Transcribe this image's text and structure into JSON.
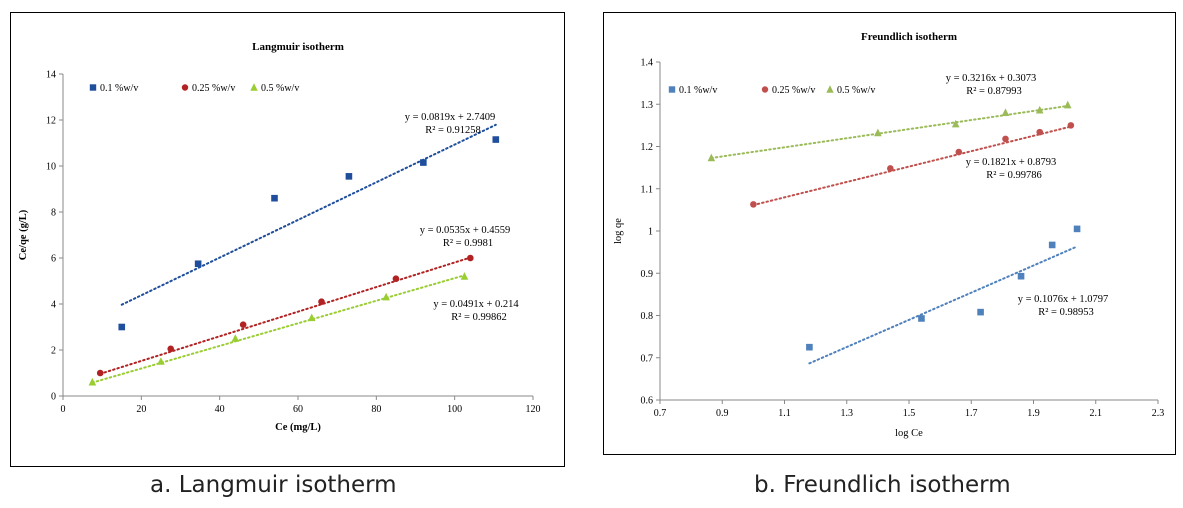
{
  "colors": {
    "blue": "#1f4e9c",
    "red": "#b22222",
    "green": "#9acd32",
    "blue_b": "#4f81bd",
    "red_b": "#c0504d",
    "green_b": "#9bbb59"
  },
  "captions": {
    "a": "a. Langmuir isotherm",
    "b": "b. Freundlich isotherm"
  },
  "chart_data": [
    {
      "type": "scatter",
      "title": "Langmuir isotherm",
      "xlabel": "Ce (mg/L)",
      "ylabel": "Ce/qe (g/L)",
      "xlim": [
        0,
        120
      ],
      "ylim": [
        0,
        14
      ],
      "xticks": [
        0,
        20,
        40,
        60,
        80,
        100,
        120
      ],
      "yticks": [
        0,
        2,
        4,
        6,
        8,
        10,
        12,
        14
      ],
      "grid": false,
      "legend_position": "top-left",
      "series": [
        {
          "name": "0.1 %w/v",
          "marker": "square",
          "color": "#1f4e9c",
          "x": [
            15,
            34.5,
            54,
            73,
            92,
            110.5
          ],
          "y": [
            3.0,
            5.75,
            8.6,
            9.55,
            10.15,
            11.15
          ],
          "trend": {
            "slope": 0.0819,
            "intercept": 2.7409,
            "x_range": [
              15,
              110.5
            ],
            "equation": "y = 0.0819x + 2.7409",
            "r2": "R² = 0.91258"
          }
        },
        {
          "name": "0.25 %w/v",
          "marker": "circle",
          "color": "#b22222",
          "x": [
            9.5,
            27.5,
            46,
            66,
            85,
            104
          ],
          "y": [
            1.0,
            2.05,
            3.1,
            4.1,
            5.1,
            6.0
          ],
          "trend": {
            "slope": 0.0535,
            "intercept": 0.4559,
            "x_range": [
              9.5,
              104
            ],
            "equation": "y = 0.0535x + 0.4559",
            "r2": "R² = 0.9981"
          }
        },
        {
          "name": "0.5 %w/v",
          "marker": "triangle",
          "color": "#9acd32",
          "x": [
            7.5,
            25,
            44,
            63.5,
            82.5,
            102.5
          ],
          "y": [
            0.6,
            1.5,
            2.5,
            3.4,
            4.3,
            5.2
          ],
          "trend": {
            "slope": 0.0491,
            "intercept": 0.214,
            "x_range": [
              7.5,
              102.5
            ],
            "equation": "y = 0.0491x + 0.214",
            "r2": "R² = 0.99862"
          }
        }
      ]
    },
    {
      "type": "scatter",
      "title": "Freundlich isotherm",
      "xlabel": "log Ce",
      "ylabel": "log qe",
      "xlim": [
        0.7,
        2.3
      ],
      "ylim": [
        0.6,
        1.4
      ],
      "xticks": [
        "0.7",
        "0.9",
        "1.1",
        "1.3",
        "1.5",
        "1.7",
        "1.9",
        "2.1",
        "2.3"
      ],
      "yticks": [
        "0.6",
        "0.7",
        "0.8",
        "0.9",
        "1",
        "1.1",
        "1.2",
        "1.3",
        "1.4"
      ],
      "grid": false,
      "legend_position": "top-left",
      "series": [
        {
          "name": "0.1 %w/v",
          "marker": "square",
          "color": "#4f81bd",
          "x": [
            1.18,
            1.54,
            1.73,
            1.86,
            1.96,
            2.04
          ],
          "y": [
            0.725,
            0.793,
            0.808,
            0.893,
            0.967,
            1.005
          ],
          "trend": {
            "slope": 0.3216,
            "intercept": 0.3073,
            "x_range": [
              1.18,
              2.04
            ],
            "equation": "y = 0.3216x + 0.3073",
            "r2": "R² = 0.87993"
          }
        },
        {
          "name": "0.25 %w/v",
          "marker": "circle",
          "color": "#c0504d",
          "x": [
            1.0,
            1.44,
            1.66,
            1.81,
            1.92,
            2.02
          ],
          "y": [
            1.063,
            1.148,
            1.187,
            1.218,
            1.234,
            1.25
          ],
          "trend": {
            "slope": 0.1821,
            "intercept": 0.8793,
            "x_range": [
              1.0,
              2.02
            ],
            "equation": "y = 0.1821x + 0.8793",
            "r2": "R² = 0.99786"
          }
        },
        {
          "name": "0.5 %w/v",
          "marker": "triangle",
          "color": "#9bbb59",
          "x": [
            0.865,
            1.4,
            1.65,
            1.81,
            1.92,
            2.01
          ],
          "y": [
            1.173,
            1.232,
            1.253,
            1.28,
            1.286,
            1.298
          ],
          "trend": {
            "slope": 0.1076,
            "intercept": 1.0797,
            "x_range": [
              0.865,
              2.01
            ],
            "equation": "y = 0.1076x + 1.0797",
            "r2": "R² = 0.98953"
          }
        }
      ]
    }
  ]
}
